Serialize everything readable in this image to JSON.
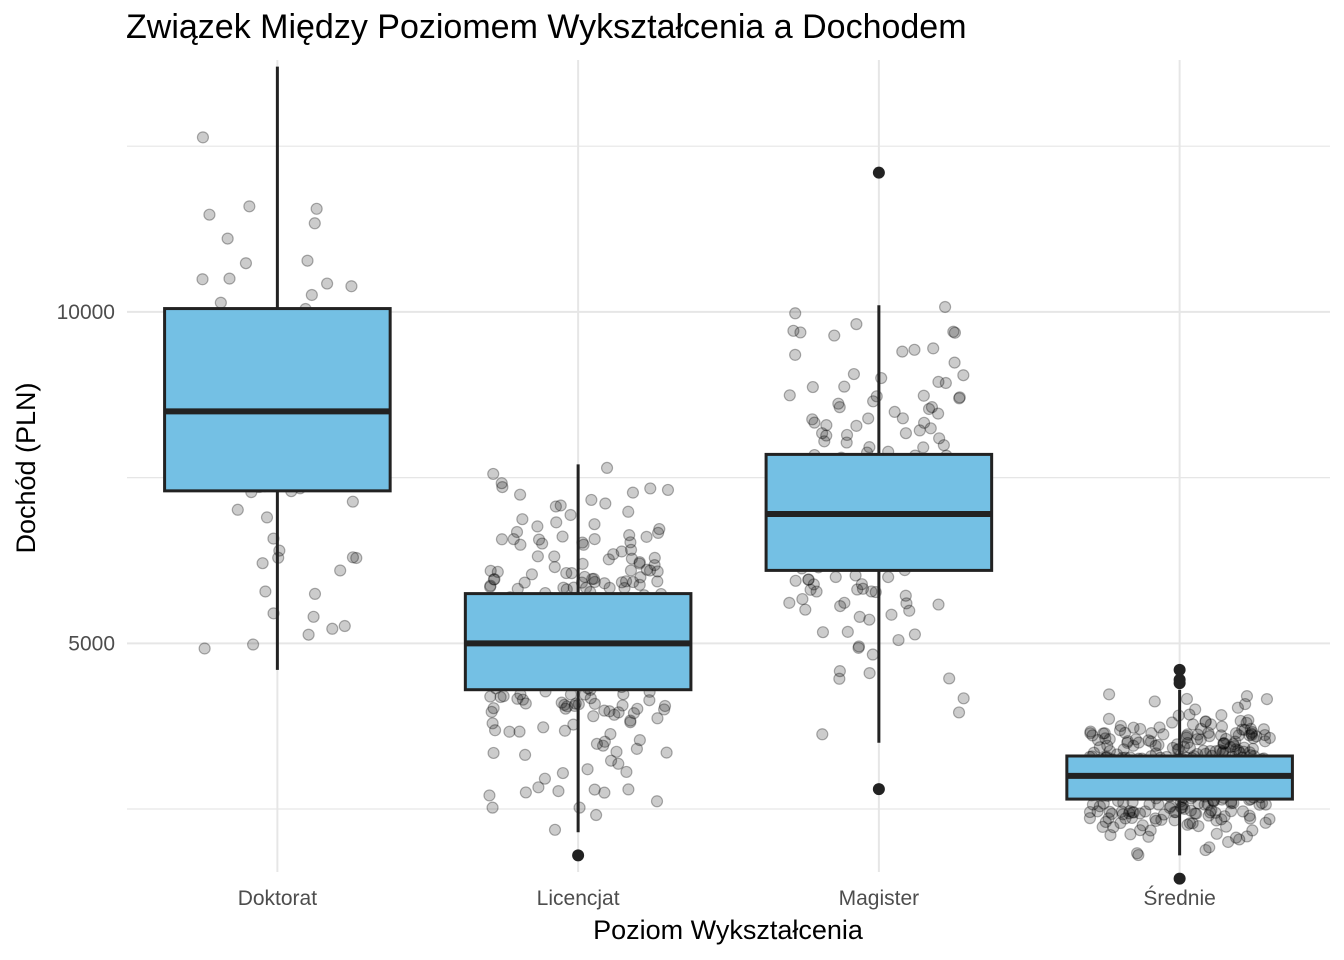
{
  "chart_data": {
    "type": "boxplot",
    "title": "Związek Między Poziomem Wykształcenia a Dochodem",
    "xlabel": "Poziom Wykształcenia",
    "ylabel": "Dochód (PLN)",
    "ylim": [
      1550,
      13800
    ],
    "yticks": [
      5000,
      10000
    ],
    "grid": true,
    "legend": "none",
    "colors": {
      "box_fill": "#74c0e4",
      "box_line": "#222222",
      "grid": "#e6e6e6",
      "points": "#000000"
    },
    "categories": [
      "Doktorat",
      "Licencjat",
      "Magister",
      "Średnie"
    ],
    "boxes": [
      {
        "category": "Doktorat",
        "q1": 7300,
        "median": 8500,
        "q3": 10050,
        "whisker_low": 4600,
        "whisker_high": 13700,
        "outliers": [],
        "n": 90,
        "spread": 0.12
      },
      {
        "category": "Licencjat",
        "q1": 4300,
        "median": 5000,
        "q3": 5750,
        "whisker_low": 2150,
        "whisker_high": 7700,
        "outliers": [
          1800
        ],
        "n": 300,
        "spread": 0.12
      },
      {
        "category": "Magister",
        "q1": 6100,
        "median": 6950,
        "q3": 7850,
        "whisker_low": 3500,
        "whisker_high": 10100,
        "outliers": [
          2800,
          12100
        ],
        "n": 200,
        "spread": 0.12
      },
      {
        "category": "Średnie",
        "q1": 2650,
        "median": 3000,
        "q3": 3300,
        "whisker_low": 1800,
        "whisker_high": 4300,
        "outliers": [
          1450,
          4400,
          4450,
          4600
        ],
        "n": 400,
        "spread": 0.12
      }
    ]
  }
}
